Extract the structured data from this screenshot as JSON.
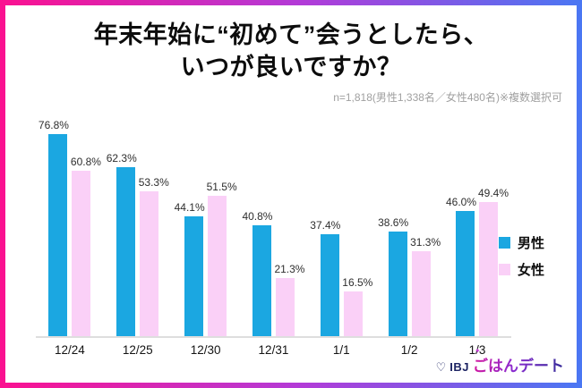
{
  "title": {
    "line1": "年末年始に“初めて”会うとしたら、",
    "line2": "いつが良いですか？"
  },
  "note": "n=1,818(男性1,338名／女性480名)※複数選択可",
  "colors": {
    "male": "#1BA7E1",
    "female": "#FAD0F7",
    "frame_gradient_left": "#FB1190",
    "frame_gradient_mid": "#B23BD8",
    "frame_gradient_right": "#4A77F3",
    "axis_line": "#dedede"
  },
  "chart_data": {
    "type": "bar",
    "title": "年末年始に“初めて”会うとしたら、いつが良いですか？",
    "categories": [
      "12/24",
      "12/25",
      "12/30",
      "12/31",
      "1/1",
      "1/2",
      "1/3"
    ],
    "series": [
      {
        "name": "男性",
        "color": "#1BA7E1",
        "values": [
          76.8,
          62.3,
          44.1,
          40.8,
          37.4,
          38.6,
          46.0
        ]
      },
      {
        "name": "女性",
        "color": "#FAD0F7",
        "values": [
          60.8,
          53.3,
          51.5,
          21.3,
          16.5,
          31.3,
          49.4
        ]
      }
    ],
    "value_suffix": "%",
    "value_decimals": 1,
    "xlabel": "",
    "ylabel": "",
    "ylim": [
      0,
      80
    ],
    "grid": false,
    "legend_position": "top-right",
    "data_labels": true
  },
  "logo": {
    "heart_icon": "♡",
    "prefix": "IBJ",
    "sparkle_icon": "✦",
    "brand": "ごはんデート"
  }
}
